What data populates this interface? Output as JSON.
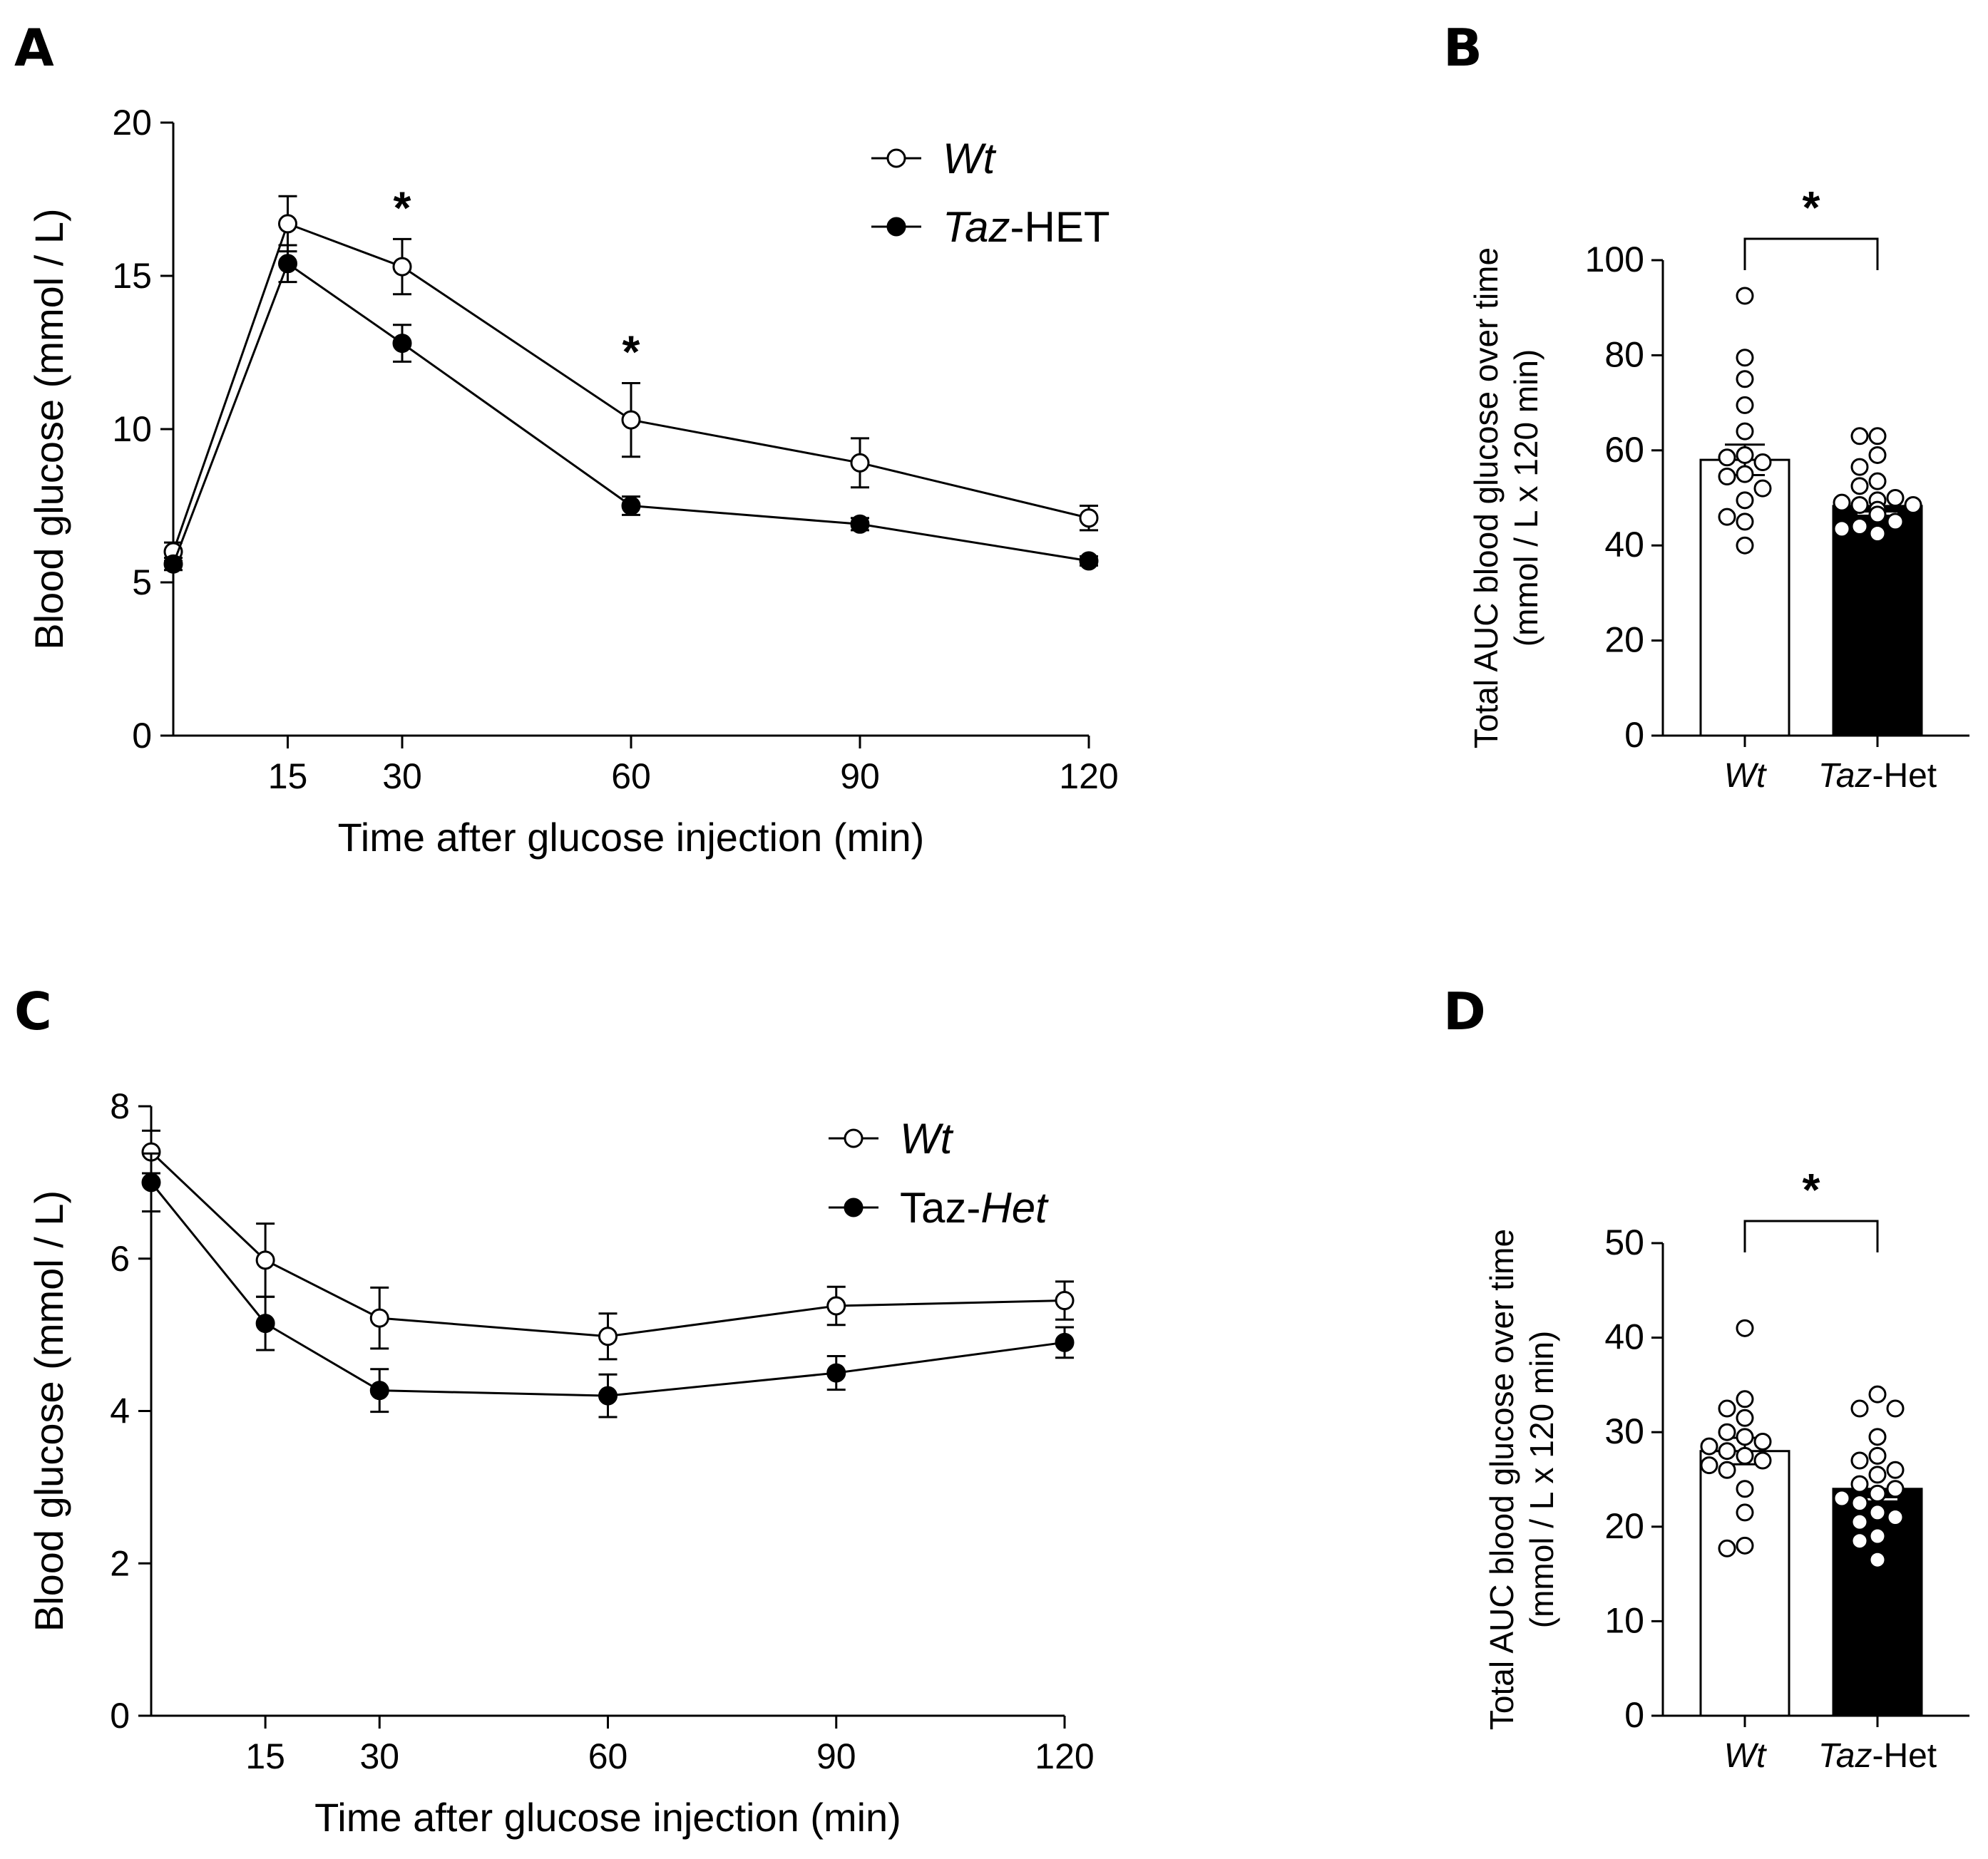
{
  "panels": {
    "A": {
      "letter": "A"
    },
    "B": {
      "letter": "B"
    },
    "C": {
      "letter": "C"
    },
    "D": {
      "letter": "D"
    }
  },
  "chart_data": [
    {
      "panel": "A",
      "type": "line",
      "xlabel": "Time after glucose injection (min)",
      "ylabel": "Blood glucose (mmol / L)",
      "xlim": [
        0,
        120
      ],
      "ylim": [
        0,
        20
      ],
      "xticks": [
        15,
        30,
        60,
        90,
        120
      ],
      "yticks": [
        0,
        5,
        10,
        15,
        20
      ],
      "x": [
        0,
        15,
        30,
        60,
        90,
        120
      ],
      "series": [
        {
          "name": "Wt",
          "name_italic": "Wt",
          "name_rest": "",
          "marker": "open",
          "values": [
            6.0,
            16.7,
            15.3,
            10.3,
            8.9,
            7.1
          ],
          "errors": [
            0.3,
            0.9,
            0.9,
            1.2,
            0.8,
            0.4
          ]
        },
        {
          "name": "Taz-HET",
          "name_italic": "Taz",
          "name_rest": "-HET",
          "marker": "filled",
          "values": [
            5.6,
            15.4,
            12.8,
            7.5,
            6.9,
            5.7
          ],
          "errors": [
            0.2,
            0.6,
            0.6,
            0.3,
            0.2,
            0.15
          ]
        }
      ],
      "annotations": [
        {
          "x": 30,
          "text": "*"
        },
        {
          "x": 60,
          "text": "*"
        }
      ],
      "legend": "top-right"
    },
    {
      "panel": "B",
      "type": "bar",
      "ylabel_line1": "Total AUC blood glucose over time",
      "ylabel_line2": "(mmol / L x 120 min)",
      "ylim": [
        0,
        100
      ],
      "yticks": [
        0,
        20,
        40,
        60,
        80,
        100
      ],
      "categories": [
        {
          "italic": "Wt",
          "rest": ""
        },
        {
          "italic": "Taz",
          "rest": "-Het"
        }
      ],
      "values": [
        58,
        48.3
      ],
      "errors": [
        3.2,
        1.6
      ],
      "fills": [
        "#ffffff",
        "#000000"
      ],
      "points": [
        [
          92.5,
          79.5,
          75,
          69.5,
          64,
          59,
          58.5,
          57.5,
          55,
          54.5,
          52,
          49.5,
          46,
          45,
          40
        ],
        [
          63,
          63,
          59,
          56.5,
          53.5,
          52.5,
          50,
          49.5,
          49,
          48.5,
          48.5,
          47.5,
          46.5,
          45,
          44,
          43.5,
          42.5
        ]
      ],
      "significance": "*"
    },
    {
      "panel": "C",
      "type": "line",
      "xlabel": "Time after glucose injection (min)",
      "ylabel": "Blood glucose (mmol / L)",
      "xlim": [
        0,
        120
      ],
      "ylim": [
        0,
        8
      ],
      "xticks": [
        15,
        30,
        60,
        90,
        120
      ],
      "yticks": [
        0,
        2,
        4,
        6,
        8
      ],
      "x": [
        0,
        15,
        30,
        60,
        90,
        120
      ],
      "series": [
        {
          "name": "Wt",
          "name_italic": "Wt",
          "name_rest": "",
          "marker": "open",
          "values": [
            7.4,
            5.98,
            5.22,
            4.98,
            5.38,
            5.45
          ],
          "errors": [
            0.28,
            0.48,
            0.4,
            0.3,
            0.25,
            0.25
          ]
        },
        {
          "name": "Taz-Het",
          "name_italic": "Het",
          "name_prefix": "Taz-",
          "marker": "filled",
          "values": [
            7.0,
            5.15,
            4.27,
            4.2,
            4.5,
            4.9
          ],
          "errors": [
            0.38,
            0.35,
            0.28,
            0.28,
            0.22,
            0.2
          ]
        }
      ],
      "legend": "top-right"
    },
    {
      "panel": "D",
      "type": "bar",
      "ylabel_line1": "Total AUC blood glucose over time",
      "ylabel_line2": "(mmol / L x 120 min)",
      "ylim": [
        0,
        50
      ],
      "yticks": [
        0,
        10,
        20,
        30,
        40,
        50
      ],
      "categories": [
        {
          "italic": "Wt",
          "rest": ""
        },
        {
          "italic": "Taz",
          "rest": "-Het"
        }
      ],
      "values": [
        28,
        24
      ],
      "errors": [
        1.4,
        1.1
      ],
      "fills": [
        "#ffffff",
        "#000000"
      ],
      "points": [
        [
          41,
          33.5,
          32.5,
          31.5,
          30,
          29.5,
          29,
          28.5,
          28,
          27.5,
          27,
          26.5,
          26,
          24,
          21.5,
          18,
          17.7
        ],
        [
          34,
          32.5,
          32.5,
          29.5,
          27.5,
          27,
          26,
          25.5,
          24.5,
          24,
          23.5,
          23,
          22.5,
          21.5,
          21,
          20.5,
          19,
          18.5,
          16.5
        ]
      ],
      "significance": "*"
    }
  ]
}
